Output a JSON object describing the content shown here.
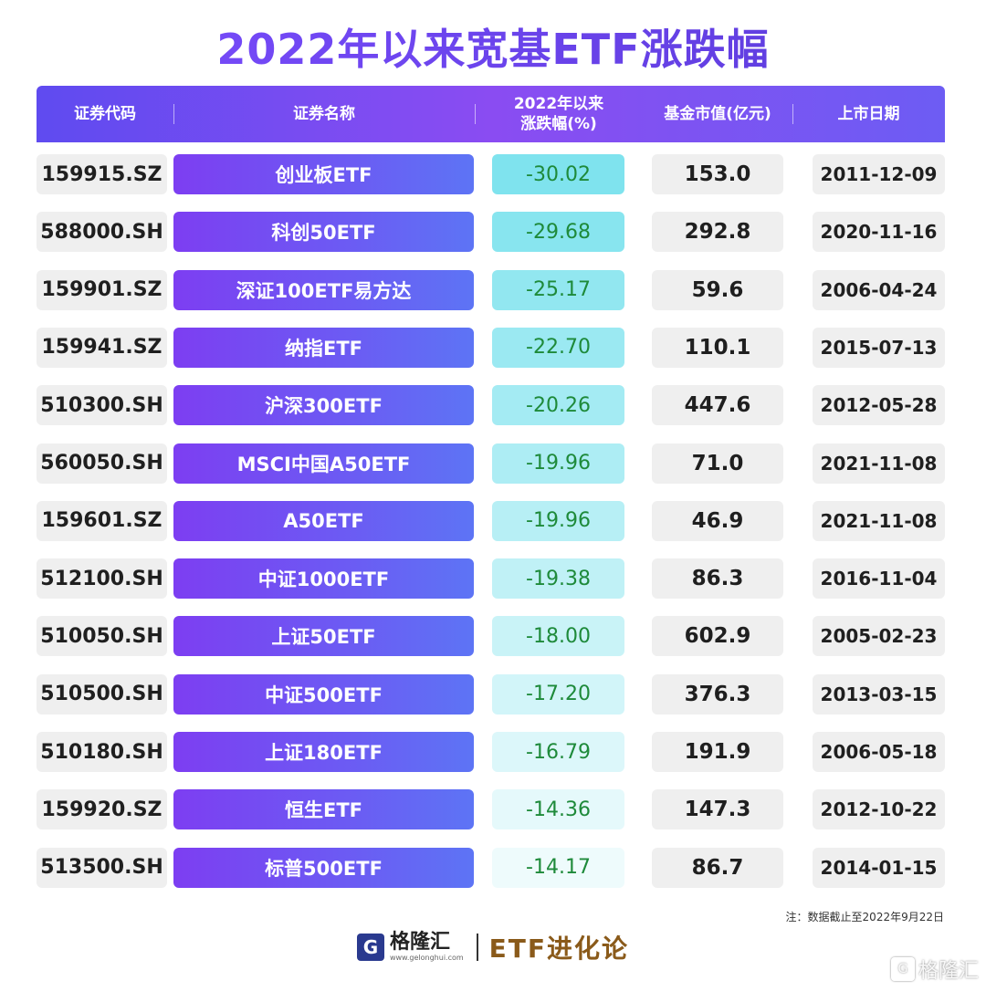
{
  "title": "2022年以来宽基ETF涨跌幅",
  "header": {
    "code": "证券代码",
    "name": "证券名称",
    "change_line1": "2022年以来",
    "change_line2": "涨跌幅(%)",
    "market_value": "基金市值(亿元)",
    "list_date": "上市日期"
  },
  "chart_data": {
    "type": "table",
    "title": "2022年以来宽基ETF涨跌幅",
    "columns": [
      "证券代码",
      "证券名称",
      "2022年以来涨跌幅(%)",
      "基金市值(亿元)",
      "上市日期"
    ],
    "rows": [
      {
        "code": "159915.SZ",
        "name": "创业板ETF",
        "change": "-30.02",
        "mv": "153.0",
        "date": "2011-12-09"
      },
      {
        "code": "588000.SH",
        "name": "科创50ETF",
        "change": "-29.68",
        "mv": "292.8",
        "date": "2020-11-16"
      },
      {
        "code": "159901.SZ",
        "name": "深证100ETF易方达",
        "change": "-25.17",
        "mv": "59.6",
        "date": "2006-04-24"
      },
      {
        "code": "159941.SZ",
        "name": "纳指ETF",
        "change": "-22.70",
        "mv": "110.1",
        "date": "2015-07-13"
      },
      {
        "code": "510300.SH",
        "name": "沪深300ETF",
        "change": "-20.26",
        "mv": "447.6",
        "date": "2012-05-28"
      },
      {
        "code": "560050.SH",
        "name": "MSCI中国A50ETF",
        "change": "-19.96",
        "mv": "71.0",
        "date": "2021-11-08"
      },
      {
        "code": "159601.SZ",
        "name": "A50ETF",
        "change": "-19.96",
        "mv": "46.9",
        "date": "2021-11-08"
      },
      {
        "code": "512100.SH",
        "name": "中证1000ETF",
        "change": "-19.38",
        "mv": "86.3",
        "date": "2016-11-04"
      },
      {
        "code": "510050.SH",
        "name": "上证50ETF",
        "change": "-18.00",
        "mv": "602.9",
        "date": "2005-02-23"
      },
      {
        "code": "510500.SH",
        "name": "中证500ETF",
        "change": "-17.20",
        "mv": "376.3",
        "date": "2013-03-15"
      },
      {
        "code": "510180.SH",
        "name": "上证180ETF",
        "change": "-16.79",
        "mv": "191.9",
        "date": "2006-05-18"
      },
      {
        "code": "159920.SZ",
        "name": "恒生ETF",
        "change": "-14.36",
        "mv": "147.3",
        "date": "2012-10-22"
      },
      {
        "code": "513500.SH",
        "name": "标普500ETF",
        "change": "-14.17",
        "mv": "86.7",
        "date": "2014-01-15"
      }
    ]
  },
  "note": "注：数据截止至2022年9月22日",
  "footer": {
    "logo_glyph": "G",
    "brand": "格隆汇",
    "url": "www.gelonghui.com",
    "slogan": "ETF进化论"
  },
  "watermark": {
    "icon_glyph": "G",
    "text": "格隆汇"
  },
  "colors": {
    "title": "#6a3ff0",
    "header_bg": "#6d4cf2",
    "name_bg": "#7d3ef2",
    "change_text": "#1e8a3a",
    "change_bg_strong": "#7fe3ee",
    "change_bg_weak": "#eefbfc",
    "neutral_cell": "#efefef",
    "slogan": "#8a5a1a"
  }
}
